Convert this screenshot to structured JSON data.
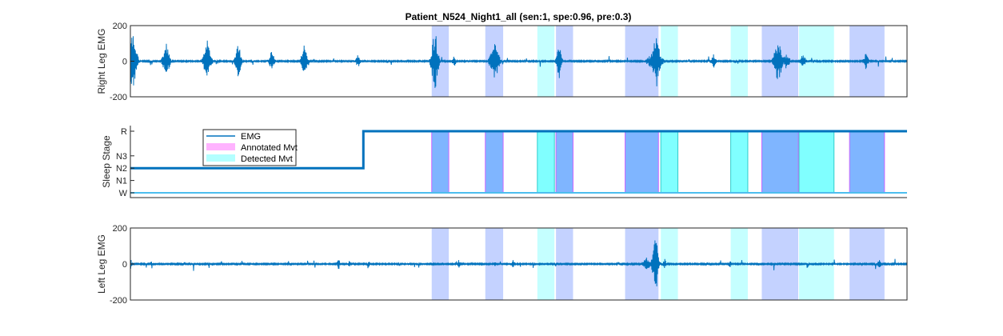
{
  "chart_data": {
    "type": "line",
    "title": "Patient_N524_Night1_all (sen:1, spe:0.96, pre:0.3)",
    "colors": {
      "emg": "#0072BD",
      "annotated_fill": "#7D9BFF",
      "detected_fill": "#7FFFFF",
      "annotated_legend": "#FFB3FF",
      "detected_legend": "#B3FFFF",
      "stage_w": "#4DBEEE",
      "annotated_stage_fill": "#7FB5FF",
      "detected_stage_fill": "#80FFFF",
      "annotated_stage_edge": "#CC66FF",
      "detected_stage_edge": "#33CCCC",
      "axis": "#262626"
    },
    "x_range": [
      0,
      1000
    ],
    "annotated_movements": [
      [
        388,
        410
      ],
      [
        457,
        480
      ],
      [
        548,
        570
      ],
      [
        637,
        680
      ],
      [
        813,
        860
      ],
      [
        926,
        971
      ]
    ],
    "detected_movements": [
      [
        524,
        546
      ],
      [
        683,
        705
      ],
      [
        773,
        795
      ],
      [
        861,
        906
      ]
    ],
    "panels": [
      {
        "id": "right",
        "ylabel": "Right Leg EMG",
        "ylim": [
          -200,
          200
        ],
        "yticks": [
          200,
          0,
          -200
        ],
        "bursts": [
          [
            3,
            180,
            10
          ],
          [
            46,
            110,
            8
          ],
          [
            99,
            120,
            9
          ],
          [
            139,
            110,
            7
          ],
          [
            182,
            70,
            6
          ],
          [
            224,
            100,
            7
          ],
          [
            293,
            40,
            5
          ],
          [
            392,
            200,
            8
          ],
          [
            417,
            35,
            4
          ],
          [
            469,
            140,
            10
          ],
          [
            552,
            110,
            6
          ],
          [
            677,
            170,
            9
          ],
          [
            675,
            60,
            18
          ],
          [
            751,
            40,
            6
          ],
          [
            834,
            130,
            10
          ],
          [
            845,
            50,
            8
          ],
          [
            866,
            50,
            6
          ],
          [
            947,
            50,
            6
          ]
        ]
      },
      {
        "id": "sleep",
        "ylabel": "Sleep Stage",
        "stage_labels": [
          "R",
          "N3",
          "N2",
          "N1",
          "W"
        ],
        "stage_levels": [
          4,
          2,
          1,
          0,
          -1
        ],
        "hypnogram": [
          [
            0,
            1
          ],
          [
            300,
            1
          ],
          [
            300,
            4
          ],
          [
            1000,
            4
          ]
        ],
        "w_level": -1,
        "legend": [
          "EMG",
          "Annotated Mvt",
          "Detected Mvt"
        ]
      },
      {
        "id": "left",
        "ylabel": "Left Leg EMG",
        "ylim": [
          -200,
          200
        ],
        "yticks": [
          200,
          0,
          -200
        ],
        "bursts": [
          [
            0,
            40,
            3
          ],
          [
            27,
            15,
            3
          ],
          [
            268,
            40,
            3
          ],
          [
            282,
            20,
            3
          ],
          [
            307,
            20,
            3
          ],
          [
            423,
            25,
            4
          ],
          [
            469,
            20,
            4
          ],
          [
            493,
            30,
            4
          ],
          [
            676,
            190,
            7
          ],
          [
            665,
            40,
            10
          ],
          [
            688,
            30,
            4
          ],
          [
            772,
            20,
            4
          ],
          [
            964,
            40,
            4
          ]
        ]
      }
    ]
  }
}
